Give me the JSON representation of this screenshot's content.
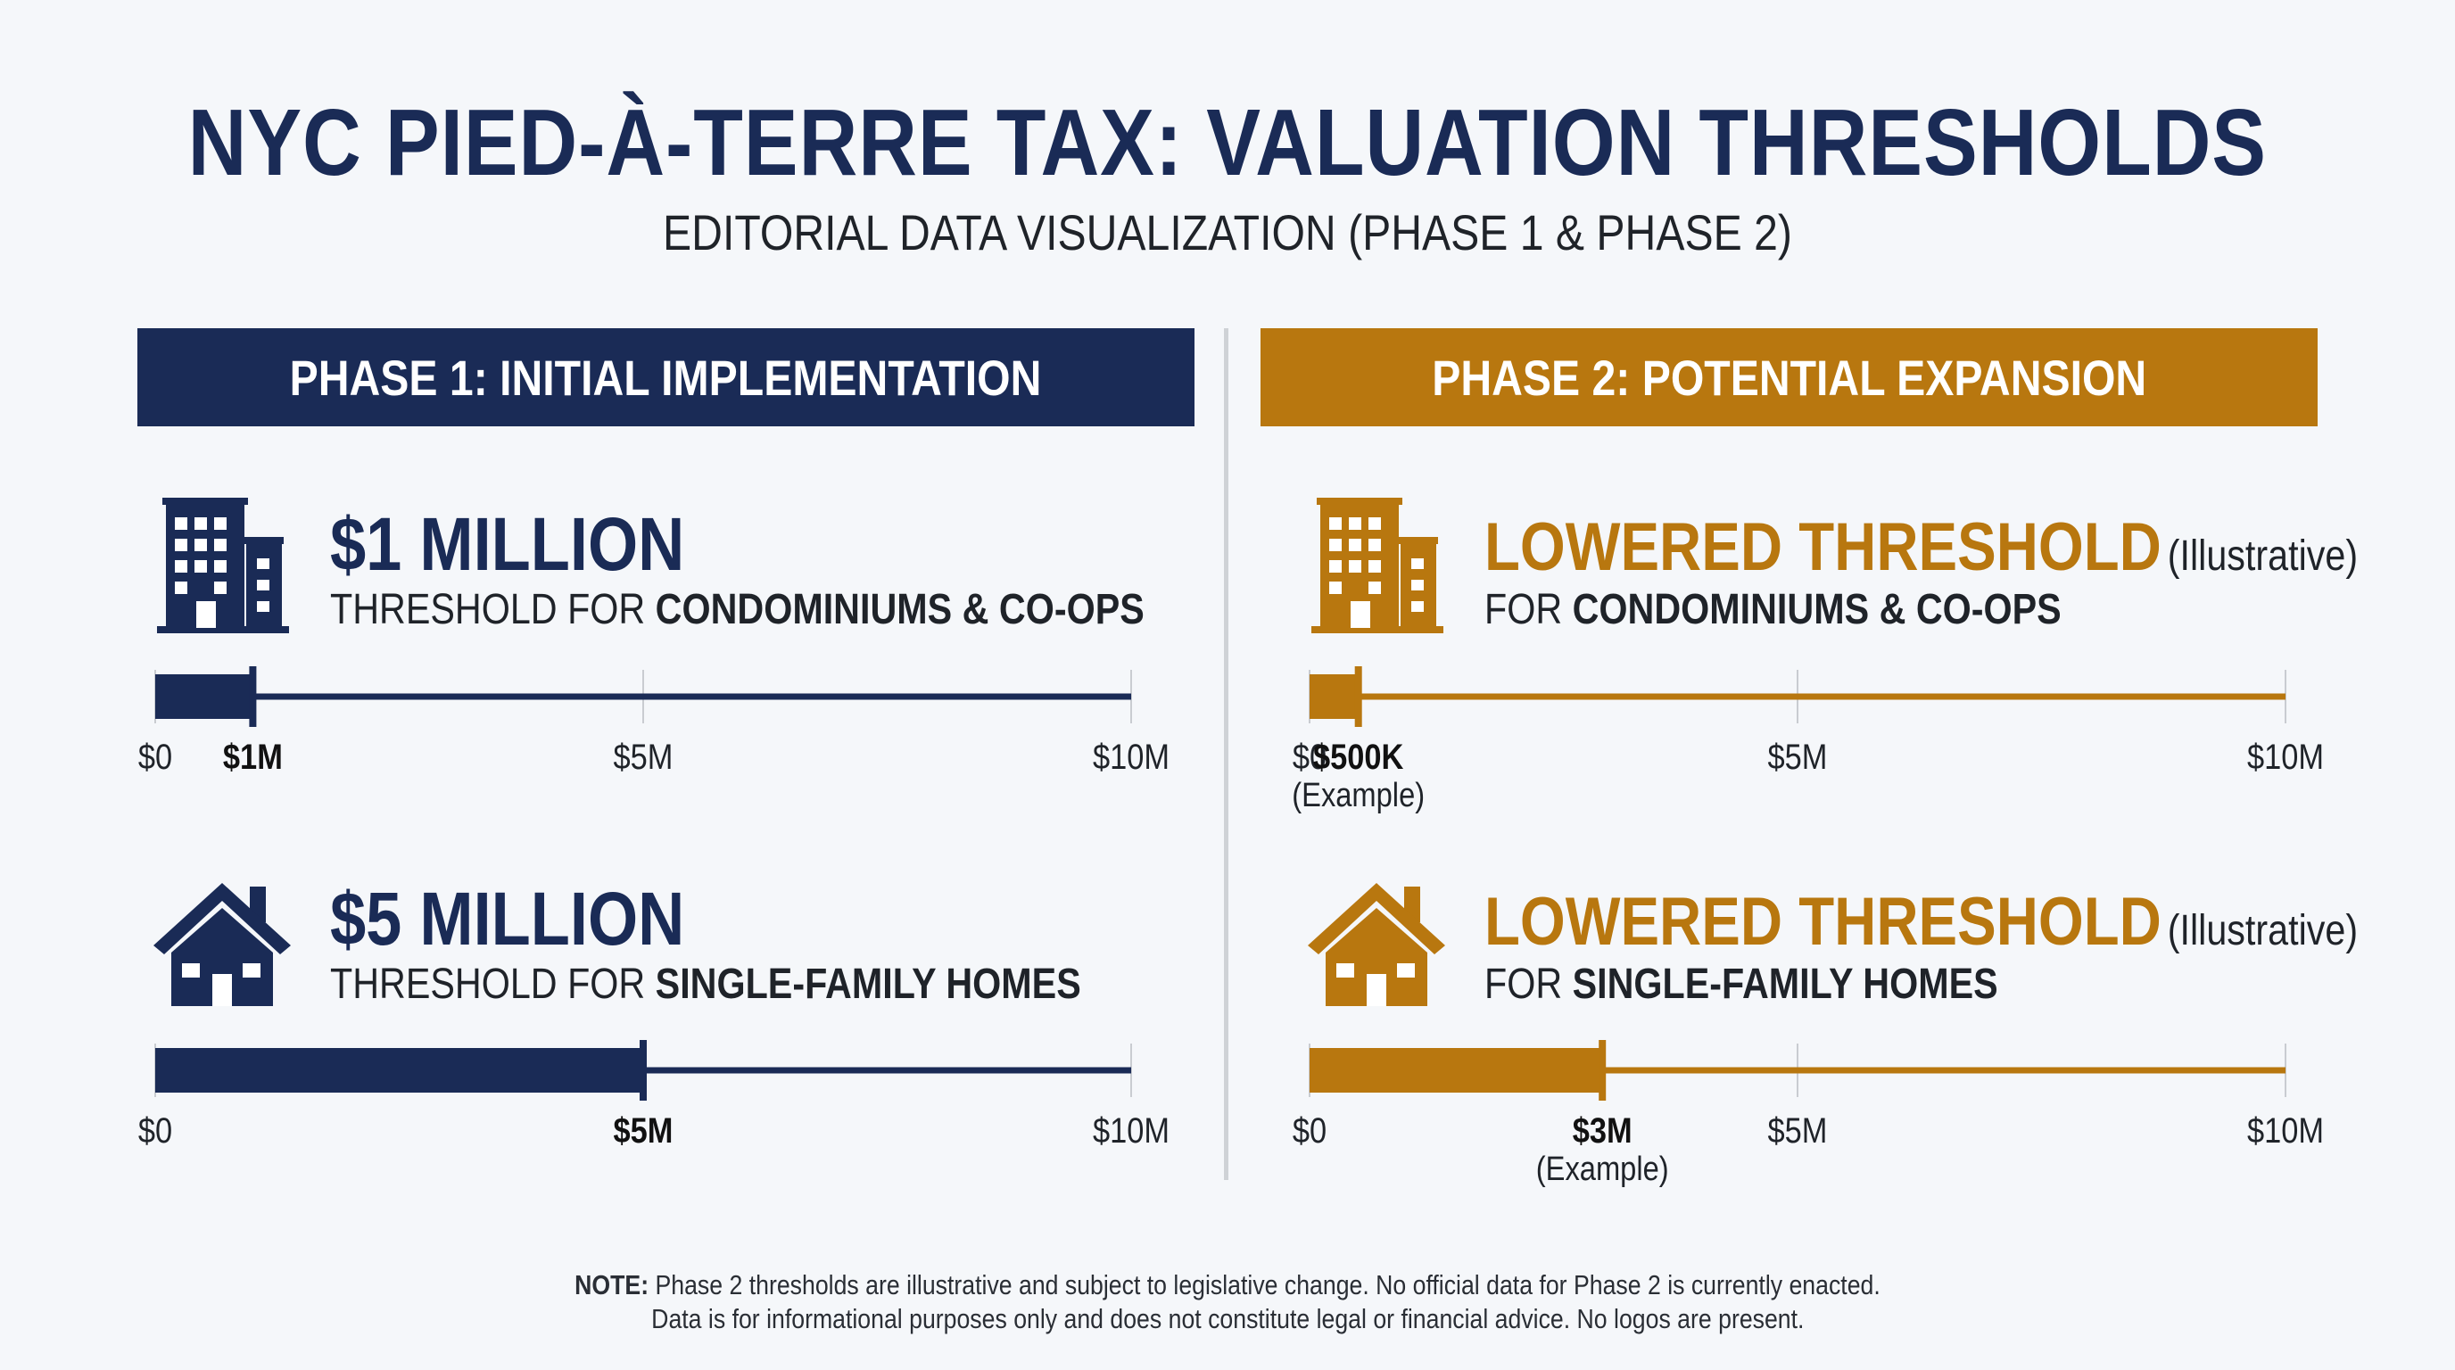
{
  "header": {
    "title": "NYC PIED-À-TERRE TAX: VALUATION THRESHOLDS",
    "subtitle": "EDITORIAL DATA VISUALIZATION (PHASE 1 & PHASE 2)"
  },
  "colors": {
    "navy": "#1a2b56",
    "gold": "#b8770f",
    "divider": "#cfd2d6"
  },
  "phase1": {
    "banner": "PHASE 1: INITIAL IMPLEMENTATION",
    "condo": {
      "icon": "apartment-building-icon",
      "headline": "$1 MILLION",
      "sub_prefix": "THRESHOLD FOR ",
      "sub_bold": "CONDOMINIUMS & CO-OPS"
    },
    "home": {
      "icon": "house-icon",
      "headline": "$5 MILLION",
      "sub_prefix": "THRESHOLD FOR ",
      "sub_bold": "SINGLE-FAMILY HOMES"
    }
  },
  "phase2": {
    "banner": "PHASE 2: POTENTIAL EXPANSION",
    "condo": {
      "icon": "apartment-building-icon",
      "headline": "LOWERED THRESHOLD",
      "headline_note": "(Illustrative)",
      "sub_prefix": "FOR ",
      "sub_bold": "CONDOMINIUMS & CO-OPS"
    },
    "home": {
      "icon": "house-icon",
      "headline": "LOWERED THRESHOLD",
      "headline_note": "(Illustrative)",
      "sub_prefix": "FOR ",
      "sub_bold": "SINGLE-FAMILY HOMES"
    }
  },
  "note": {
    "label": "NOTE:",
    "line1": "Phase 2 thresholds are illustrative and subject to legislative change. No official data for Phase 2 is currently enacted.",
    "line2": "Data is for informational purposes only and does not constitute legal or financial advice. No logos are present."
  },
  "chart_data": [
    {
      "type": "bar",
      "id": "p1-condo",
      "color": "#1a2b56",
      "xlim": [
        0,
        10000000
      ],
      "value": 1000000,
      "value_label": "$1M",
      "value_sublabel": "",
      "ticks": [
        {
          "v": 0,
          "label": "$0"
        },
        {
          "v": 5000000,
          "label": "$5M"
        },
        {
          "v": 10000000,
          "label": "$10M"
        }
      ]
    },
    {
      "type": "bar",
      "id": "p1-home",
      "color": "#1a2b56",
      "xlim": [
        0,
        10000000
      ],
      "value": 5000000,
      "value_label": "$5M",
      "value_sublabel": "",
      "ticks": [
        {
          "v": 0,
          "label": "$0"
        },
        {
          "v": 10000000,
          "label": "$10M"
        }
      ]
    },
    {
      "type": "bar",
      "id": "p2-condo",
      "color": "#b8770f",
      "xlim": [
        0,
        10000000
      ],
      "value": 500000,
      "value_label": "$500K",
      "value_sublabel": "(Example)",
      "ticks": [
        {
          "v": 0,
          "label": "$0"
        },
        {
          "v": 5000000,
          "label": "$5M"
        },
        {
          "v": 10000000,
          "label": "$10M"
        }
      ]
    },
    {
      "type": "bar",
      "id": "p2-home",
      "color": "#b8770f",
      "xlim": [
        0,
        10000000
      ],
      "value": 3000000,
      "value_label": "$3M",
      "value_sublabel": "(Example)",
      "ticks": [
        {
          "v": 0,
          "label": "$0"
        },
        {
          "v": 5000000,
          "label": "$5M"
        },
        {
          "v": 10000000,
          "label": "$10M"
        }
      ]
    }
  ]
}
